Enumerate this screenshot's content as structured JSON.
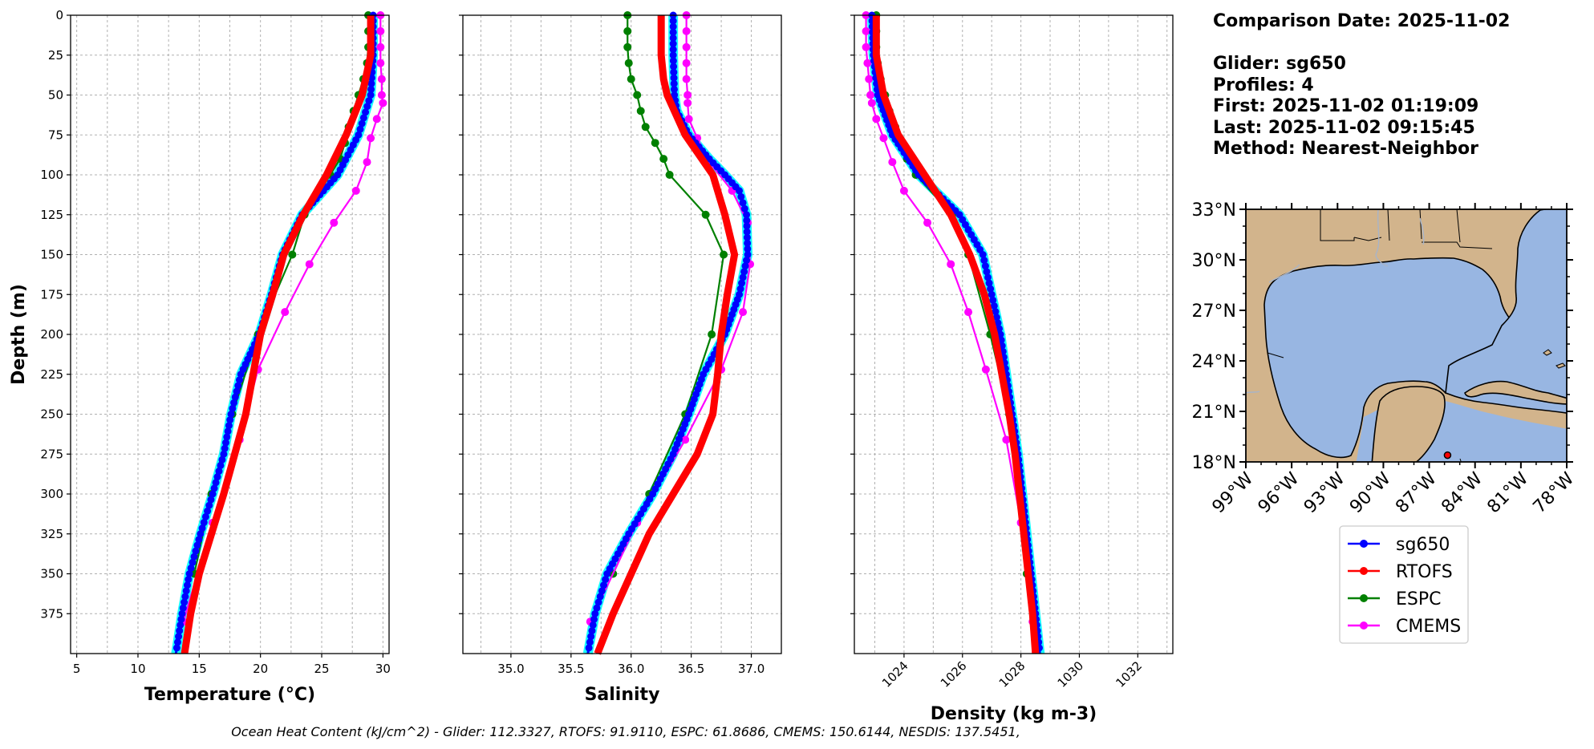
{
  "info": {
    "date_line": "Comparison Date: 2025-11-02",
    "glider_line": "Glider: sg650",
    "profiles_line": "Profiles: 4",
    "first_line": "First: 2025-11-02 01:19:09",
    "last_line": "Last: 2025-11-02 09:15:45",
    "method_line": "Method: Nearest-Neighbor"
  },
  "footer": "Ocean Heat Content (kJ/cm^2) - Glider: 112.3327,  RTOFS: 91.9110,  ESPC: 61.8686,  CMEMS: 150.6144,  NESDIS: 137.5451,",
  "colors": {
    "sg650": "#0000ff",
    "sg650_spread": "#00ffff",
    "RTOFS": "#ff0000",
    "ESPC": "#008000",
    "CMEMS": "#ff00ff",
    "land": "#d2b48c",
    "ocean": "#98b6e2",
    "marker": "#ff0000"
  },
  "legend": [
    "sg650",
    "RTOFS",
    "ESPC",
    "CMEMS"
  ],
  "map": {
    "lat_ticks": [
      "33°N",
      "30°N",
      "27°N",
      "24°N",
      "21°N",
      "18°N"
    ],
    "lon_ticks": [
      "99°W",
      "96°W",
      "93°W",
      "90°W",
      "87°W",
      "84°W",
      "81°W",
      "78°W"
    ],
    "glider_position": {
      "lon": -85.8,
      "lat": 18.4
    }
  },
  "chart_data": [
    {
      "type": "line",
      "xlabel": "Temperature (°C)",
      "ylabel": "Depth (m)",
      "xlim": [
        4.5,
        30.5
      ],
      "ylim": [
        400,
        0
      ],
      "xticks": [
        5,
        10,
        15,
        20,
        25,
        30
      ],
      "yticks": [
        0,
        25,
        50,
        75,
        100,
        125,
        150,
        175,
        200,
        225,
        250,
        275,
        300,
        325,
        350,
        375
      ],
      "grid": true,
      "series": [
        {
          "name": "sg650",
          "depth": [
            0,
            25,
            50,
            75,
            100,
            125,
            150,
            175,
            200,
            225,
            250,
            275,
            300,
            325,
            350,
            375,
            400
          ],
          "values": [
            29.2,
            29.2,
            29.0,
            28.0,
            26.3,
            23.4,
            21.8,
            20.9,
            19.9,
            18.4,
            17.6,
            17.0,
            16.1,
            15.1,
            14.2,
            13.6,
            13.1
          ]
        },
        {
          "name": "RTOFS",
          "depth": [
            0,
            25,
            50,
            75,
            100,
            125,
            150,
            175,
            200,
            225,
            250,
            275,
            300,
            325,
            350,
            375,
            400
          ],
          "values": [
            29.0,
            29.0,
            28.3,
            27.0,
            25.4,
            23.5,
            21.9,
            21.0,
            20.0,
            19.4,
            18.8,
            17.9,
            17.0,
            16.0,
            15.0,
            14.3,
            13.8
          ]
        },
        {
          "name": "ESPC",
          "depth": [
            0,
            10,
            20,
            30,
            40,
            50,
            60,
            70,
            80,
            90,
            100,
            125,
            150,
            200,
            250,
            300,
            350
          ],
          "values": [
            28.8,
            28.8,
            28.8,
            28.7,
            28.4,
            28.0,
            27.6,
            27.2,
            26.9,
            26.5,
            25.7,
            23.6,
            22.6,
            19.8,
            17.7,
            16.0,
            14.6
          ]
        },
        {
          "name": "CMEMS",
          "depth": [
            0,
            10,
            20,
            30,
            40,
            50,
            55,
            65,
            77,
            92,
            110,
            130,
            156,
            186,
            222,
            266,
            318,
            380
          ],
          "values": [
            29.8,
            29.8,
            29.8,
            29.8,
            29.9,
            29.9,
            30.0,
            29.5,
            29.0,
            28.7,
            27.8,
            26.0,
            24.0,
            22.0,
            19.8,
            18.3,
            16.1,
            13.7
          ]
        }
      ]
    },
    {
      "type": "line",
      "xlabel": "Salinity",
      "xlim": [
        34.6,
        37.25
      ],
      "ylim": [
        400,
        0
      ],
      "xticks": [
        35.0,
        35.5,
        36.0,
        36.5,
        37.0
      ],
      "grid": true,
      "series": [
        {
          "name": "sg650",
          "depth": [
            0,
            25,
            50,
            60,
            75,
            90,
            100,
            110,
            125,
            150,
            175,
            200,
            225,
            250,
            275,
            300,
            325,
            350,
            375,
            400
          ],
          "values": [
            36.35,
            36.35,
            36.36,
            36.38,
            36.48,
            36.65,
            36.78,
            36.9,
            36.96,
            36.97,
            36.9,
            36.78,
            36.6,
            36.48,
            36.35,
            36.18,
            35.98,
            35.8,
            35.7,
            35.64
          ]
        },
        {
          "name": "RTOFS",
          "depth": [
            0,
            25,
            40,
            50,
            75,
            100,
            125,
            150,
            175,
            200,
            225,
            250,
            275,
            300,
            325,
            350,
            375,
            400
          ],
          "values": [
            36.25,
            36.25,
            36.27,
            36.3,
            36.45,
            36.68,
            36.78,
            36.86,
            36.8,
            36.75,
            36.72,
            36.68,
            36.55,
            36.35,
            36.15,
            36.0,
            35.85,
            35.72
          ]
        },
        {
          "name": "ESPC",
          "depth": [
            0,
            10,
            20,
            30,
            40,
            50,
            60,
            70,
            80,
            90,
            100,
            125,
            150,
            200,
            250,
            300,
            350
          ],
          "values": [
            35.97,
            35.97,
            35.97,
            35.98,
            36.0,
            36.05,
            36.08,
            36.12,
            36.2,
            36.27,
            36.32,
            36.62,
            36.77,
            36.67,
            36.45,
            36.15,
            35.85
          ]
        },
        {
          "name": "CMEMS",
          "depth": [
            0,
            10,
            20,
            30,
            40,
            50,
            55,
            65,
            77,
            92,
            110,
            130,
            156,
            186,
            222,
            266,
            318,
            380
          ],
          "values": [
            36.46,
            36.46,
            36.46,
            36.46,
            36.46,
            36.47,
            36.47,
            36.48,
            36.55,
            36.65,
            36.84,
            36.97,
            36.99,
            36.93,
            36.75,
            36.45,
            36.05,
            35.66
          ]
        }
      ]
    },
    {
      "type": "line",
      "xlabel": "Density (kg m-3)",
      "xlim": [
        1022.3,
        1033.2
      ],
      "ylim": [
        400,
        0
      ],
      "xticks": [
        1024,
        1026,
        1028,
        1030,
        1032
      ],
      "grid": true,
      "series": [
        {
          "name": "sg650",
          "depth": [
            0,
            25,
            50,
            75,
            100,
            125,
            150,
            175,
            200,
            225,
            250,
            275,
            300,
            325,
            350,
            375,
            400
          ],
          "values": [
            1022.9,
            1022.95,
            1023.1,
            1023.6,
            1024.5,
            1025.9,
            1026.7,
            1027.0,
            1027.3,
            1027.5,
            1027.7,
            1027.9,
            1028.05,
            1028.2,
            1028.35,
            1028.5,
            1028.65
          ]
        },
        {
          "name": "RTOFS",
          "depth": [
            0,
            25,
            50,
            75,
            100,
            125,
            150,
            175,
            200,
            225,
            250,
            275,
            300,
            325,
            350,
            375,
            400
          ],
          "values": [
            1023.05,
            1023.05,
            1023.3,
            1023.8,
            1024.7,
            1025.6,
            1026.25,
            1026.75,
            1027.1,
            1027.35,
            1027.6,
            1027.8,
            1027.95,
            1028.1,
            1028.25,
            1028.4,
            1028.5
          ]
        },
        {
          "name": "ESPC",
          "depth": [
            0,
            10,
            20,
            30,
            40,
            50,
            60,
            70,
            80,
            90,
            100,
            125,
            150,
            200,
            250,
            300,
            350
          ],
          "values": [
            1023.05,
            1023.05,
            1023.05,
            1023.1,
            1023.2,
            1023.35,
            1023.5,
            1023.7,
            1023.9,
            1024.1,
            1024.4,
            1025.65,
            1026.2,
            1026.95,
            1027.6,
            1027.95,
            1028.2
          ]
        },
        {
          "name": "CMEMS",
          "depth": [
            0,
            10,
            20,
            30,
            40,
            50,
            55,
            65,
            77,
            92,
            110,
            130,
            156,
            186,
            222,
            266,
            318,
            380
          ],
          "values": [
            1022.7,
            1022.7,
            1022.7,
            1022.75,
            1022.8,
            1022.85,
            1022.9,
            1023.05,
            1023.3,
            1023.6,
            1024.0,
            1024.8,
            1025.6,
            1026.2,
            1026.8,
            1027.5,
            1028.0,
            1028.4
          ]
        }
      ]
    }
  ]
}
